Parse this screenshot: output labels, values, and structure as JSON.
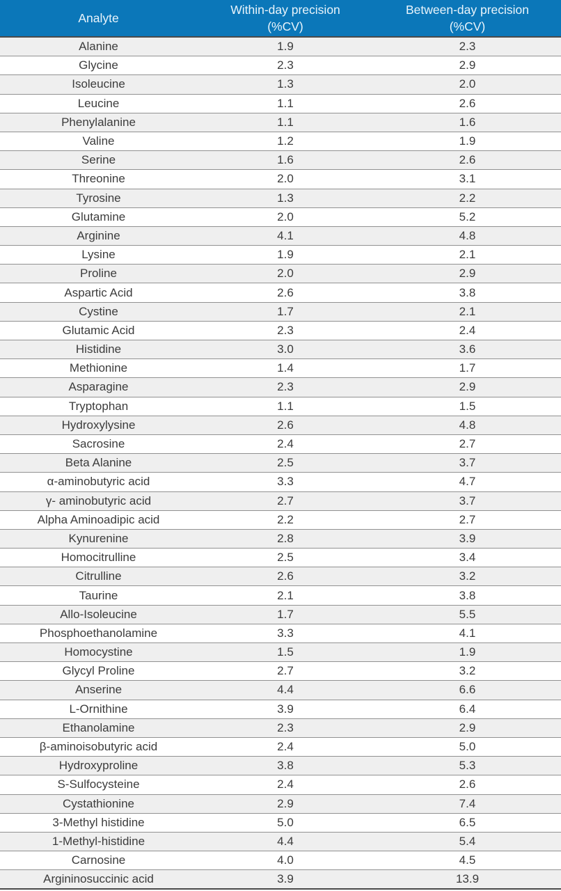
{
  "colors": {
    "header_bg": "#0B77B9",
    "header_text": "#E9F4FB",
    "row_alt_bg": "#EFEFEF",
    "row_bg": "#FFFFFF",
    "row_border": "#919191",
    "strong_border": "#4A4A4A",
    "body_text": "#3C3C3C"
  },
  "table": {
    "columns": [
      {
        "label": "Analyte",
        "sublabel": ""
      },
      {
        "label": "Within-day precision",
        "sublabel": "(%CV)"
      },
      {
        "label": "Between-day precision",
        "sublabel": "(%CV)"
      }
    ],
    "rows": [
      {
        "analyte": "Alanine",
        "within": "1.9",
        "between": "2.3"
      },
      {
        "analyte": "Glycine",
        "within": "2.3",
        "between": "2.9"
      },
      {
        "analyte": "Isoleucine",
        "within": "1.3",
        "between": "2.0"
      },
      {
        "analyte": "Leucine",
        "within": "1.1",
        "between": "2.6"
      },
      {
        "analyte": "Phenylalanine",
        "within": "1.1",
        "between": "1.6"
      },
      {
        "analyte": "Valine",
        "within": "1.2",
        "between": "1.9"
      },
      {
        "analyte": "Serine",
        "within": "1.6",
        "between": "2.6"
      },
      {
        "analyte": "Threonine",
        "within": "2.0",
        "between": "3.1"
      },
      {
        "analyte": "Tyrosine",
        "within": "1.3",
        "between": "2.2"
      },
      {
        "analyte": "Glutamine",
        "within": "2.0",
        "between": "5.2"
      },
      {
        "analyte": "Arginine",
        "within": "4.1",
        "between": "4.8"
      },
      {
        "analyte": "Lysine",
        "within": "1.9",
        "between": "2.1"
      },
      {
        "analyte": "Proline",
        "within": "2.0",
        "between": "2.9"
      },
      {
        "analyte": "Aspartic Acid",
        "within": "2.6",
        "between": "3.8"
      },
      {
        "analyte": "Cystine",
        "within": "1.7",
        "between": "2.1"
      },
      {
        "analyte": "Glutamic Acid",
        "within": "2.3",
        "between": "2.4"
      },
      {
        "analyte": "Histidine",
        "within": "3.0",
        "between": "3.6"
      },
      {
        "analyte": "Methionine",
        "within": "1.4",
        "between": "1.7"
      },
      {
        "analyte": "Asparagine",
        "within": "2.3",
        "between": "2.9"
      },
      {
        "analyte": "Tryptophan",
        "within": "1.1",
        "between": "1.5"
      },
      {
        "analyte": "Hydroxylysine",
        "within": "2.6",
        "between": "4.8"
      },
      {
        "analyte": "Sacrosine",
        "within": "2.4",
        "between": "2.7"
      },
      {
        "analyte": "Beta Alanine",
        "within": "2.5",
        "between": "3.7"
      },
      {
        "analyte": "α-aminobutyric acid",
        "within": "3.3",
        "between": "4.7"
      },
      {
        "analyte": "γ- aminobutyric acid",
        "within": "2.7",
        "between": "3.7"
      },
      {
        "analyte": "Alpha Aminoadipic acid",
        "within": "2.2",
        "between": "2.7"
      },
      {
        "analyte": "Kynurenine",
        "within": "2.8",
        "between": "3.9"
      },
      {
        "analyte": "Homocitrulline",
        "within": "2.5",
        "between": "3.4"
      },
      {
        "analyte": "Citrulline",
        "within": "2.6",
        "between": "3.2"
      },
      {
        "analyte": "Taurine",
        "within": "2.1",
        "between": "3.8"
      },
      {
        "analyte": "Allo-Isoleucine",
        "within": "1.7",
        "between": "5.5"
      },
      {
        "analyte": "Phosphoethanolamine",
        "within": "3.3",
        "between": "4.1"
      },
      {
        "analyte": "Homocystine",
        "within": "1.5",
        "between": "1.9"
      },
      {
        "analyte": "Glycyl Proline",
        "within": "2.7",
        "between": "3.2"
      },
      {
        "analyte": "Anserine",
        "within": "4.4",
        "between": "6.6"
      },
      {
        "analyte": "L-Ornithine",
        "within": "3.9",
        "between": "6.4"
      },
      {
        "analyte": "Ethanolamine",
        "within": "2.3",
        "between": "2.9"
      },
      {
        "analyte": "β-aminoisobutyric acid",
        "within": "2.4",
        "between": "5.0"
      },
      {
        "analyte": "Hydroxyproline",
        "within": "3.8",
        "between": "5.3"
      },
      {
        "analyte": "S-Sulfocysteine",
        "within": "2.4",
        "between": "2.6"
      },
      {
        "analyte": "Cystathionine",
        "within": "2.9",
        "between": "7.4"
      },
      {
        "analyte": "3-Methyl histidine",
        "within": "5.0",
        "between": "6.5"
      },
      {
        "analyte": "1-Methyl-histidine",
        "within": "4.4",
        "between": "5.4"
      },
      {
        "analyte": "Carnosine",
        "within": "4.0",
        "between": "4.5"
      },
      {
        "analyte": "Argininosuccinic acid",
        "within": "3.9",
        "between": "13.9"
      }
    ]
  }
}
